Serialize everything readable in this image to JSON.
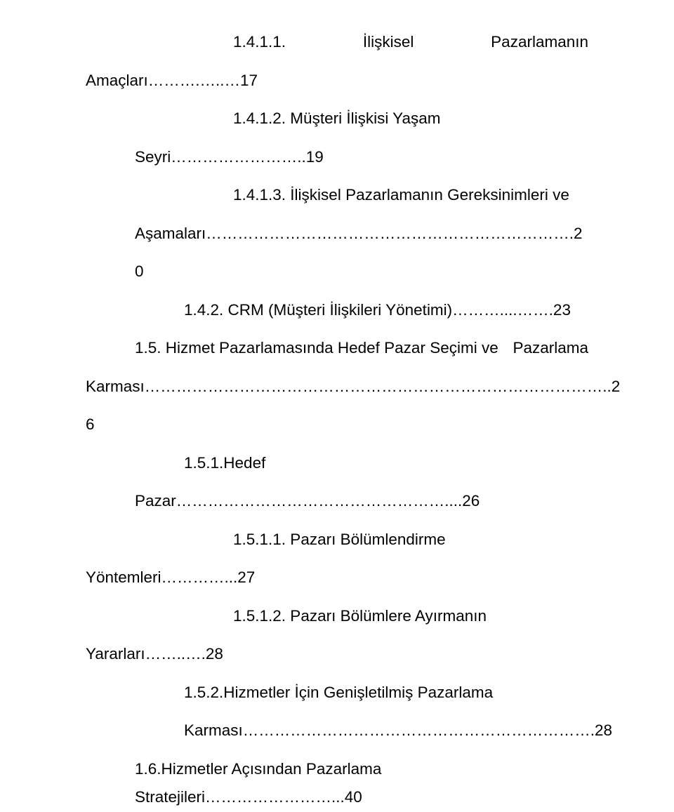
{
  "lines": {
    "l1_left": "1.4.1.1.",
    "l1_mid": "İlişkisel",
    "l1_right": "Pazarlamanın",
    "l2": "Amaçları……….…..…17",
    "l3": "1.4.1.2. Müşteri İlişkisi Yaşam",
    "l4": "Seyri……………………..19",
    "l5": "1.4.1.3. İlişkisel Pazarlamanın Gereksinimleri ve",
    "l6": "Aşamaları…………………………………………………………….2",
    "l7": "0",
    "l8": "1.4.2. CRM (Müşteri İlişkileri Yönetimi)………....…….23",
    "l9_left": "1.5.  Hizmet  Pazarlamasında  Hedef  Pazar  Seçimi  ve",
    "l9_right": "Pazarlama",
    "l10": "Karması……………………………………………………………………………..2",
    "l11": "6",
    "l12": "1.5.1.Hedef",
    "l13": "Pazar……………………………………………....26",
    "l14": "1.5.1.1. Pazarı Bölümlendirme",
    "l15": "Yöntemleri…………...27",
    "l16": "1.5.1.2. Pazarı Bölümlere Ayırmanın",
    "l17": "Yararları……..….28",
    "l18": "1.5.2.Hizmetler İçin Genişletilmiş Pazarlama",
    "l19": "Karması………………………………………………………….28",
    "l20": "1.6.Hizmetler Açısından Pazarlama Stratejileri……………………...40"
  }
}
